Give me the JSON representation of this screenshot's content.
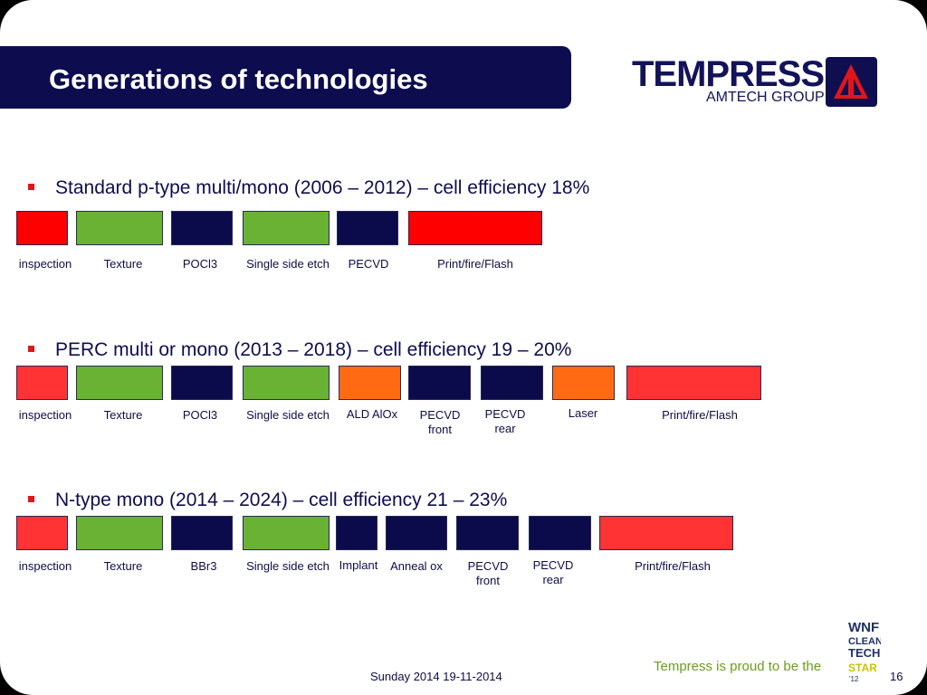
{
  "slide": {
    "title": "Generations of technologies",
    "logo": {
      "wordmark": "TEMPRESS",
      "subtitle": "AMTECH GROUP"
    },
    "sections": [
      {
        "heading": "Standard p-type multi/mono (2006 – 2012) – cell efficiency 18%",
        "steps": [
          {
            "label": "inspection",
            "color": "#ff0000"
          },
          {
            "label": "Texture",
            "color": "#69b234"
          },
          {
            "label": "POCl3",
            "color": "#0b0b4c"
          },
          {
            "label": "Single side etch",
            "color": "#69b234"
          },
          {
            "label": "PECVD",
            "color": "#0b0b4c"
          },
          {
            "label": "Print/fire/Flash",
            "color": "#ff0000"
          }
        ]
      },
      {
        "heading": "PERC multi or mono (2013 – 2018) – cell efficiency 19 – 20%",
        "steps": [
          {
            "label": "inspection",
            "color": "#ff3333"
          },
          {
            "label": "Texture",
            "color": "#69b234"
          },
          {
            "label": "POCl3",
            "color": "#0b0b4c"
          },
          {
            "label": "Single side etch",
            "color": "#69b234"
          },
          {
            "label": "ALD AlOx",
            "color": "#ff6a13"
          },
          {
            "label": "PECVD front",
            "color": "#0b0b4c"
          },
          {
            "label": "PECVD rear",
            "color": "#0b0b4c"
          },
          {
            "label": "Laser",
            "color": "#ff6a13"
          },
          {
            "label": "Print/fire/Flash",
            "color": "#ff3333"
          }
        ]
      },
      {
        "heading": "N-type mono (2014 – 2024) – cell efficiency 21 – 23%",
        "steps": [
          {
            "label": "inspection",
            "color": "#ff3333"
          },
          {
            "label": "Texture",
            "color": "#69b234"
          },
          {
            "label": "BBr3",
            "color": "#0b0b4c"
          },
          {
            "label": "Single side etch",
            "color": "#69b234"
          },
          {
            "label": "Implant",
            "color": "#0b0b4c"
          },
          {
            "label": "Anneal ox",
            "color": "#0b0b4c"
          },
          {
            "label": "PECVD front",
            "color": "#0b0b4c"
          },
          {
            "label": "PECVD rear",
            "color": "#0b0b4c"
          },
          {
            "label": "Print/fire/Flash",
            "color": "#ff3333"
          }
        ]
      }
    ],
    "footer": {
      "tagline": "Tempress is proud to be the",
      "date": "Sunday 2014 19-11-2014",
      "page": "16",
      "wnf_badge": {
        "line1": "WNF",
        "line2": "CLEAN",
        "line3": "TECH",
        "line4": "STAR",
        "year": "'12"
      }
    }
  }
}
